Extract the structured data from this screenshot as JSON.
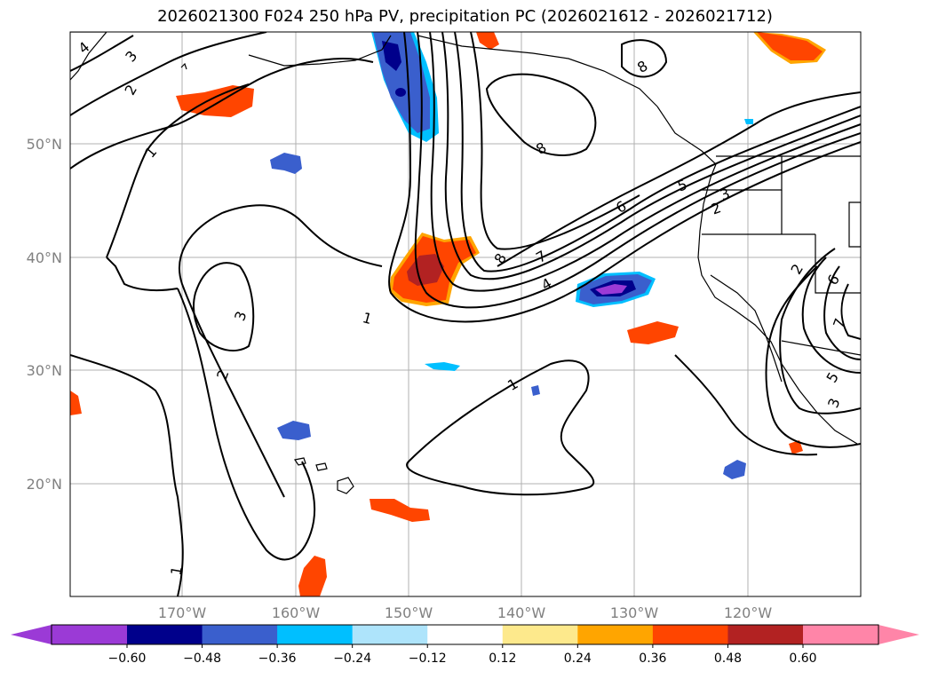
{
  "title": "2026021300 F024 250 hPa PV, precipitation PC (2026021612 - 2026021712)",
  "lat_labels": [
    "50°N",
    "40°N",
    "30°N",
    "20°N"
  ],
  "lon_labels": [
    "170°W",
    "160°W",
    "150°W",
    "140°W",
    "130°W",
    "120°W"
  ],
  "colorbar": {
    "tick_labels": [
      "−0.60",
      "−0.48",
      "−0.36",
      "−0.24",
      "−0.12",
      "0.12",
      "0.24",
      "0.36",
      "0.48",
      "0.60"
    ],
    "colors": [
      "#9b3ad6",
      "#00008b",
      "#3a5fcd",
      "#00bfff",
      "#aee4fb",
      "#ffffff",
      "#fde98c",
      "#ffa500",
      "#ff4500",
      "#b22222",
      "#ff85a8"
    ]
  },
  "contour_labels": [
    "1",
    "2",
    "3",
    "4",
    "5",
    "6",
    "7",
    "8"
  ],
  "colors": {
    "contour": "#000000",
    "grid": "#b0b0b0",
    "coast": "#000000"
  }
}
